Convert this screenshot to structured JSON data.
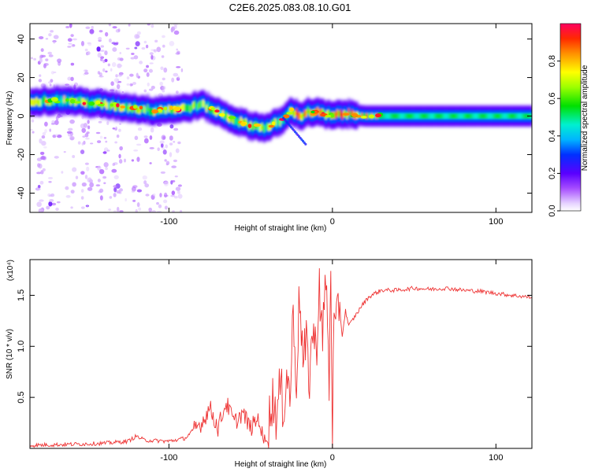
{
  "figure": {
    "title": "C2E6.2025.083.08.10.G01"
  },
  "colors": {
    "snr_line": "#ee3333",
    "axes": "#000000"
  },
  "chart_data": [
    {
      "type": "heatmap",
      "title": "C2E6.2025.083.08.10.G01",
      "xlabel": "Height of straight line (km)",
      "ylabel": "Frequency (Hz)",
      "xlim": [
        -185,
        122
      ],
      "ylim": [
        -50,
        48
      ],
      "x_ticks": [
        -100,
        0,
        100
      ],
      "y_ticks": [
        -40,
        -20,
        0,
        20,
        40
      ],
      "colorbar": {
        "label": "Normalized spectral amplitude",
        "range": [
          0,
          1
        ],
        "ticks": [
          0.0,
          0.2,
          0.4,
          0.6,
          0.8
        ],
        "colormap": "rainbow"
      },
      "ridge": {
        "x": [
          -185,
          -160,
          -130,
          -110,
          -90,
          -80,
          -70,
          -60,
          -50,
          -40,
          -30,
          -25,
          -20,
          -15,
          -10,
          -5,
          0,
          5,
          10,
          20,
          40,
          60,
          80,
          100,
          122
        ],
        "y": [
          8,
          8,
          5,
          3,
          4,
          6,
          2,
          -2,
          -5,
          -6,
          -2,
          3,
          0,
          2,
          2,
          1,
          0,
          1,
          1,
          0,
          0,
          0,
          0,
          0,
          0
        ]
      }
    },
    {
      "type": "line",
      "xlabel": "Height of straight line (km)",
      "ylabel": "SNR (10 * v/v)",
      "y_scale_label": "(x10⁴)",
      "xlim": [
        -185,
        122
      ],
      "ylim": [
        0,
        1.85
      ],
      "x_ticks": [
        -100,
        0,
        100
      ],
      "y_ticks": [
        0.5,
        1.0,
        1.5
      ],
      "series": [
        {
          "x": [
            -185,
            -160,
            -140,
            -125,
            -120,
            -115,
            -100,
            -90,
            -85,
            -80,
            -75,
            -70,
            -65,
            -60,
            -55,
            -50,
            -45,
            -42,
            -40,
            -38,
            -36,
            -34,
            -32,
            -30,
            -28,
            -26,
            -24,
            -22,
            -20,
            -18,
            -16,
            -14,
            -12,
            -10,
            -8,
            -6,
            -4,
            -2,
            -1,
            0,
            1,
            2,
            4,
            6,
            8,
            10,
            14,
            18,
            22,
            26,
            30,
            40,
            50,
            60,
            70,
            80,
            90,
            100,
            110,
            122
          ],
          "y": [
            0.03,
            0.04,
            0.05,
            0.07,
            0.12,
            0.08,
            0.07,
            0.1,
            0.18,
            0.25,
            0.4,
            0.2,
            0.45,
            0.25,
            0.35,
            0.2,
            0.3,
            0.05,
            0.15,
            0.35,
            0.5,
            0.3,
            0.6,
            0.4,
            0.75,
            0.5,
            1.3,
            0.7,
            1.55,
            0.8,
            1.0,
            0.7,
            1.2,
            0.9,
            1.65,
            1.0,
            1.75,
            0.6,
            1.82,
            0.15,
            1.3,
            1.05,
            1.45,
            1.1,
            1.35,
            1.2,
            1.3,
            1.4,
            1.48,
            1.52,
            1.55,
            1.55,
            1.57,
            1.56,
            1.57,
            1.55,
            1.54,
            1.52,
            1.5,
            1.48
          ]
        }
      ]
    }
  ]
}
